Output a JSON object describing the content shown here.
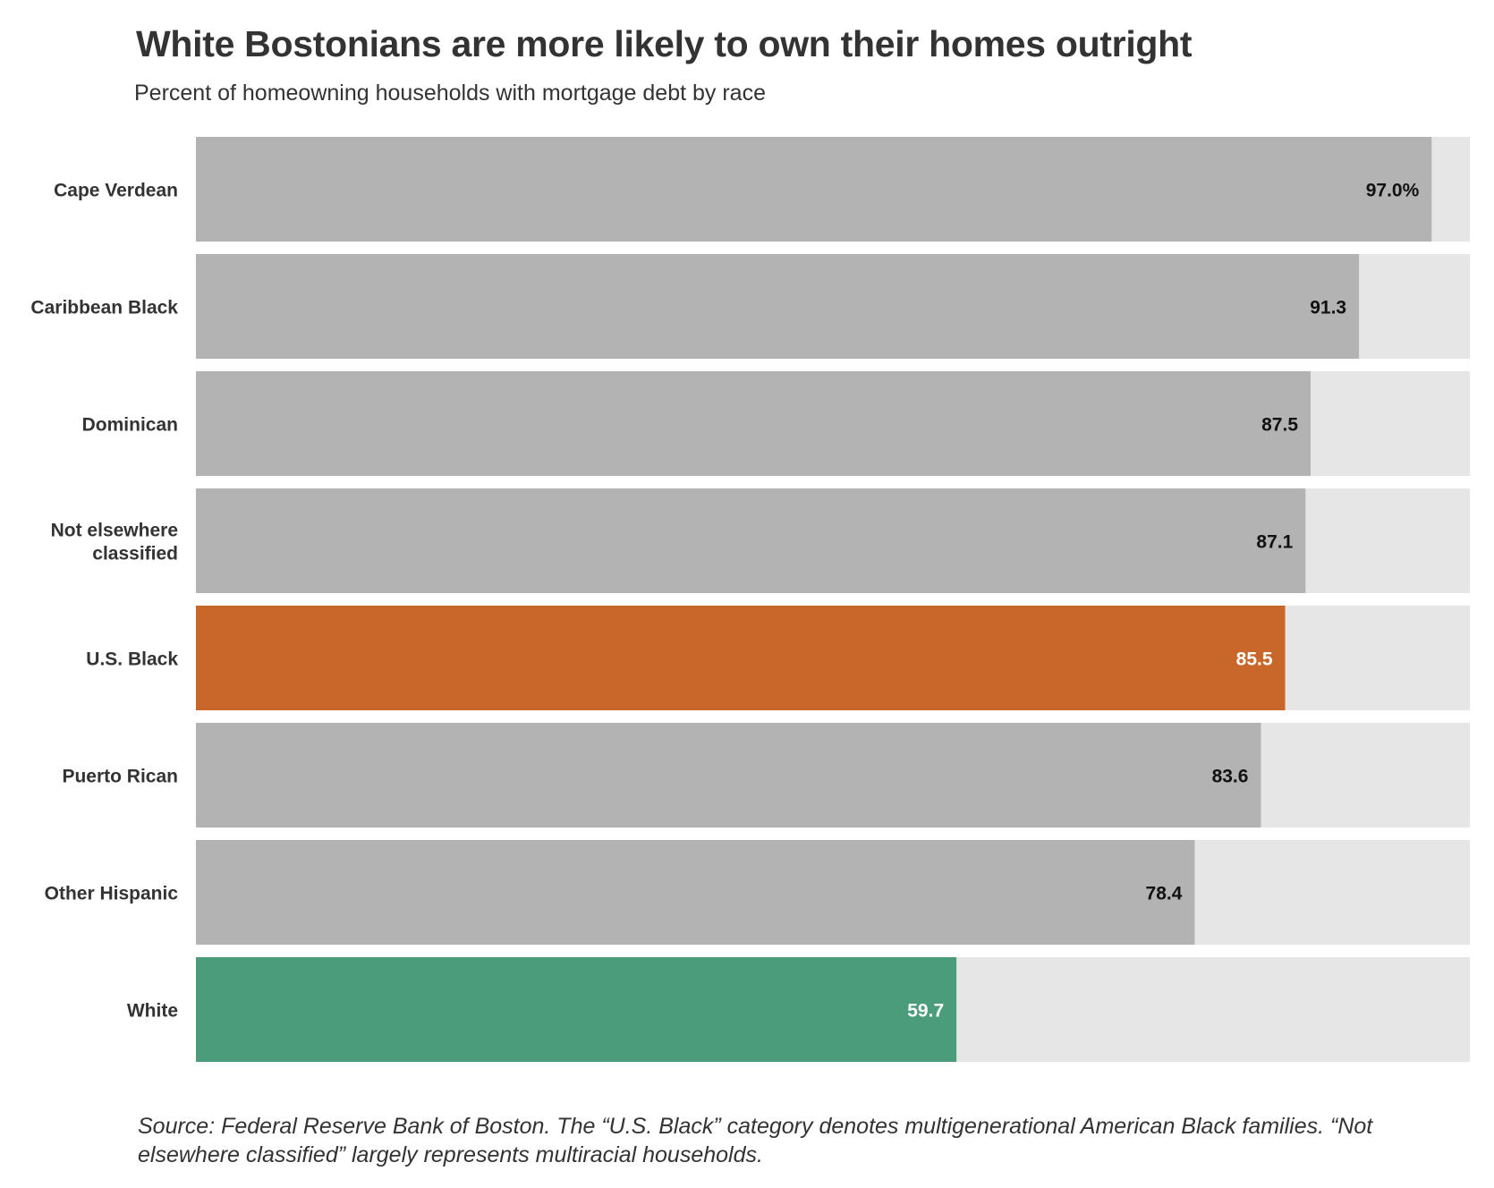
{
  "title": "White Bostonians are more likely to own their homes outright",
  "subtitle": "Percent of homeowning households with mortgage debt by race",
  "source": "Source: Federal Reserve Bank of Boston. The “U.S. Black”  category denotes multigenerational American Black families. “Not elsewhere classified” largely represents multiracial households.",
  "colors": {
    "default_bar": "#b3b3b3",
    "background_bar": "#e6e6e6",
    "us_black": "#c9662a",
    "white": "#4a9c7a",
    "label_dark": "#111111",
    "label_light": "#ffffff"
  },
  "chart_data": {
    "type": "bar",
    "orientation": "horizontal",
    "xlim": [
      0,
      100
    ],
    "categories": [
      [
        "Cape Verdean"
      ],
      [
        "Caribbean Black"
      ],
      [
        "Dominican"
      ],
      [
        "Not elsewhere",
        "classified"
      ],
      [
        "U.S. Black"
      ],
      [
        "Puerto Rican"
      ],
      [
        "Other Hispanic"
      ],
      [
        "White"
      ]
    ],
    "values": [
      97.0,
      91.3,
      87.5,
      87.1,
      85.5,
      83.6,
      78.4,
      59.7
    ],
    "value_labels": [
      "97.0%",
      "91.3",
      "87.5",
      "87.1",
      "85.5",
      "83.6",
      "78.4",
      "59.7"
    ],
    "highlight": [
      "default",
      "default",
      "default",
      "default",
      "us_black",
      "default",
      "default",
      "white"
    ]
  }
}
